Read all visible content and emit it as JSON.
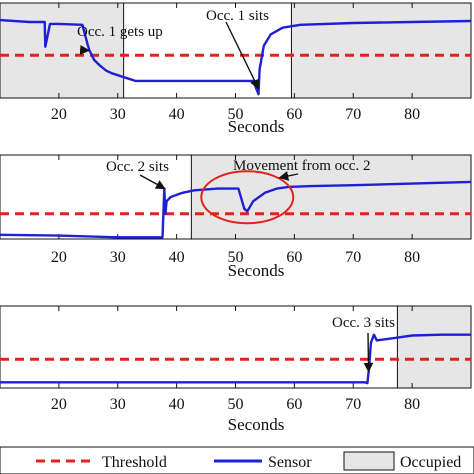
{
  "legend": {
    "threshold": "Threshold",
    "sensor": "Sensor",
    "occupied": "Occupied"
  },
  "colors": {
    "sensor": "#1f1fd6",
    "threshold": "#e0241b",
    "occupied_fill": "#e6e6e6",
    "annotation_ellipse": "#e0241b"
  },
  "chart_data": [
    {
      "type": "line",
      "xlabel": "Seconds",
      "xlim": [
        10,
        90
      ],
      "ylim": [
        0,
        1
      ],
      "xticks": [
        20,
        30,
        40,
        50,
        60,
        70,
        80
      ],
      "threshold": 0.45,
      "occupied_intervals": [
        [
          10,
          31
        ],
        [
          59.5,
          90
        ]
      ],
      "series": [
        {
          "name": "Sensor",
          "x": [
            10,
            15,
            17.6,
            17.7,
            18.5,
            20,
            24,
            24.9,
            25.2,
            26,
            27,
            28,
            29,
            30,
            31,
            33,
            40,
            50,
            53,
            53.9,
            54.1,
            54.8,
            56,
            58,
            61,
            70,
            80,
            90
          ],
          "y": [
            0.82,
            0.8,
            0.8,
            0.54,
            0.78,
            0.78,
            0.77,
            0.56,
            0.5,
            0.4,
            0.34,
            0.29,
            0.26,
            0.24,
            0.22,
            0.18,
            0.18,
            0.18,
            0.18,
            0.04,
            0.3,
            0.55,
            0.67,
            0.74,
            0.77,
            0.79,
            0.8,
            0.81
          ]
        }
      ],
      "annotations": [
        {
          "text": "Occ. 1 gets up",
          "x": 25.1,
          "y": 0.5
        },
        {
          "text": "Occ. 1 sits",
          "x": 53.9,
          "y": 0.1
        }
      ]
    },
    {
      "type": "line",
      "xlabel": "Seconds",
      "xlim": [
        10,
        90
      ],
      "ylim": [
        0,
        1
      ],
      "xticks": [
        20,
        30,
        40,
        50,
        60,
        70,
        80
      ],
      "threshold": 0.3,
      "occupied_intervals": [
        [
          42.5,
          90
        ]
      ],
      "series": [
        {
          "name": "Sensor",
          "x": [
            10,
            20,
            30,
            37,
            37.6,
            37.9,
            38.1,
            38.3,
            39,
            41,
            43,
            47,
            50.5,
            51.5,
            52,
            53,
            55,
            57,
            59,
            63,
            70,
            80,
            90
          ],
          "y": [
            0.05,
            0.04,
            0.02,
            0.02,
            0.02,
            0.6,
            0.3,
            0.45,
            0.5,
            0.55,
            0.58,
            0.6,
            0.6,
            0.36,
            0.33,
            0.45,
            0.55,
            0.6,
            0.62,
            0.63,
            0.64,
            0.66,
            0.68
          ]
        }
      ],
      "annotations": [
        {
          "text": "Occ. 2 sits",
          "x": 38,
          "y": 0.6
        },
        {
          "text": "Movement from occ. 2",
          "x": 52,
          "y": 0.45
        }
      ]
    },
    {
      "type": "line",
      "xlabel": "Seconds",
      "xlim": [
        10,
        90
      ],
      "ylim": [
        0,
        1
      ],
      "xticks": [
        20,
        30,
        40,
        50,
        60,
        70,
        80
      ],
      "threshold": 0.35,
      "occupied_intervals": [
        [
          77.5,
          90
        ]
      ],
      "series": [
        {
          "name": "Sensor",
          "x": [
            10,
            30,
            50,
            70,
            72,
            72.4,
            72.7,
            73,
            73.5,
            74,
            76,
            78,
            80,
            85,
            90
          ],
          "y": [
            0.07,
            0.07,
            0.07,
            0.07,
            0.07,
            0.06,
            0.25,
            0.55,
            0.65,
            0.58,
            0.6,
            0.62,
            0.64,
            0.65,
            0.65
          ]
        }
      ],
      "annotations": [
        {
          "text": "Occ. 3 sits",
          "x": 72.6,
          "y": 0.2
        }
      ]
    }
  ]
}
